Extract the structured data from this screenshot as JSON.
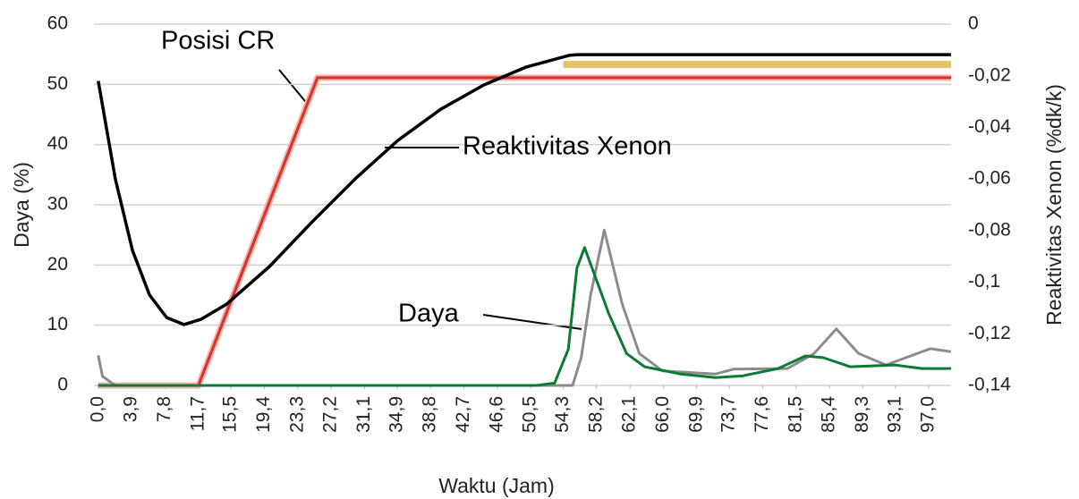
{
  "chart_data": {
    "type": "line",
    "xlabel": "Waktu (Jam)",
    "ylabel": "Daya (%)",
    "y2label": "Reaktivitas  Xenon (%dk/k)",
    "xlim": [
      -0.5,
      99.6
    ],
    "ylim": [
      0,
      60
    ],
    "y2lim": [
      -0.14,
      0
    ],
    "xticks": [
      {
        "value": 0,
        "label": "0,0"
      },
      {
        "value": 3.9,
        "label": "3,9"
      },
      {
        "value": 7.8,
        "label": "7,8"
      },
      {
        "value": 11.7,
        "label": "11,7"
      },
      {
        "value": 15.5,
        "label": "15,5"
      },
      {
        "value": 19.4,
        "label": "19,4"
      },
      {
        "value": 23.3,
        "label": "23,3"
      },
      {
        "value": 27.2,
        "label": "27,2"
      },
      {
        "value": 31.1,
        "label": "31,1"
      },
      {
        "value": 34.9,
        "label": "34,9"
      },
      {
        "value": 38.8,
        "label": "38,8"
      },
      {
        "value": 42.7,
        "label": "42,7"
      },
      {
        "value": 46.6,
        "label": "46,6"
      },
      {
        "value": 50.5,
        "label": "50,5"
      },
      {
        "value": 54.3,
        "label": "54,3"
      },
      {
        "value": 58.2,
        "label": "58,2"
      },
      {
        "value": 62.1,
        "label": "62,1"
      },
      {
        "value": 66,
        "label": "66,0"
      },
      {
        "value": 69.9,
        "label": "69,9"
      },
      {
        "value": 73.7,
        "label": "73,7"
      },
      {
        "value": 77.6,
        "label": "77,6"
      },
      {
        "value": 81.5,
        "label": "81,5"
      },
      {
        "value": 85.4,
        "label": "85,4"
      },
      {
        "value": 89.3,
        "label": "89,3"
      },
      {
        "value": 93.1,
        "label": "93,1"
      },
      {
        "value": 97,
        "label": "97,0"
      }
    ],
    "yticks": [
      0,
      10,
      20,
      30,
      40,
      50,
      60
    ],
    "y2ticks": [
      {
        "value": -0.14,
        "label": "-0,14"
      },
      {
        "value": -0.12,
        "label": "-0,12"
      },
      {
        "value": -0.1,
        "label": "-0,1"
      },
      {
        "value": -0.08,
        "label": "-0,08"
      },
      {
        "value": -0.06,
        "label": "-0,06"
      },
      {
        "value": -0.04,
        "label": "-0,04"
      },
      {
        "value": -0.02,
        "label": "-0,02"
      },
      0
    ],
    "grid": true,
    "series": [
      {
        "color": "#e2c36a",
        "x": [
          54.3,
          99.6
        ],
        "values": [
          53.3,
          53.3
        ]
      },
      {
        "name": "Posisi CR",
        "color": "#d4332b",
        "x": [
          0,
          11.7,
          25.6,
          99.6
        ],
        "values": [
          0,
          0,
          51.1,
          51.1
        ]
      },
      {
        "name": "Reaktivitas Xenon",
        "color": "#000000",
        "axis": "y2",
        "x": [
          0,
          2,
          4,
          6,
          8,
          10,
          12,
          15,
          20,
          25,
          30,
          35,
          40,
          45,
          50,
          55,
          56,
          99.6
        ],
        "values": [
          -0.022,
          -0.06,
          -0.0877,
          -0.105,
          -0.1137,
          -0.1164,
          -0.1144,
          -0.1085,
          -0.0939,
          -0.0766,
          -0.06,
          -0.045,
          -0.033,
          -0.0236,
          -0.0166,
          -0.0121,
          -0.0118,
          -0.0118
        ]
      },
      {
        "color": "#8c8c8c",
        "x": [
          0,
          0.5,
          2,
          55.4,
          56.4,
          57.5,
          59.1,
          61.2,
          63.2,
          65.9,
          72.1,
          74.2,
          80.5,
          83.6,
          86.2,
          88.8,
          92,
          97.2,
          99.6
        ],
        "values": [
          5,
          1.5,
          0,
          0,
          4.6,
          15,
          25.8,
          13.5,
          5.3,
          2.4,
          1.9,
          2.7,
          2.8,
          5.3,
          9.4,
          5.3,
          3.4,
          6.1,
          5.6
        ]
      },
      {
        "name": "Daya",
        "color": "#0b7a34",
        "x": [
          0,
          51.2,
          53.3,
          54.9,
          55.9,
          56.8,
          59.6,
          61.7,
          63.8,
          68,
          72.1,
          75.3,
          79.4,
          82.6,
          84.7,
          87.8,
          93,
          96.2,
          99.6
        ],
        "values": [
          0,
          0,
          0.4,
          6,
          19.5,
          22.9,
          12,
          5.3,
          3.1,
          1.9,
          1.3,
          1.6,
          2.8,
          4.9,
          4.6,
          3.1,
          3.4,
          2.8,
          2.8
        ]
      }
    ]
  }
}
